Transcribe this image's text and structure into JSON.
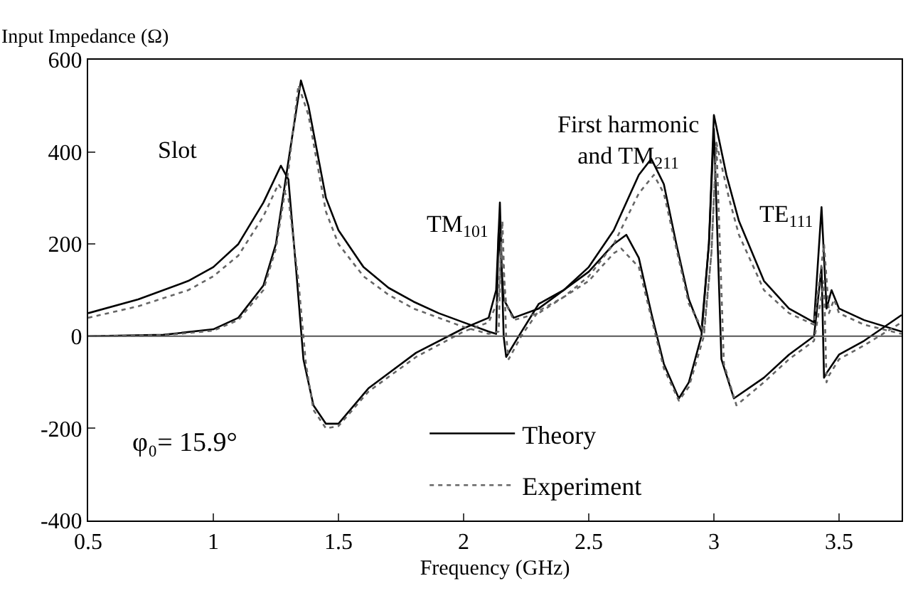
{
  "chart_data": {
    "type": "line",
    "xlabel": "Frequency (GHz)",
    "ylabel": "Input Impedance (Ω)",
    "xlim": [
      0.5,
      3.75
    ],
    "xticks": [
      0.5,
      1,
      1.5,
      2,
      2.5,
      3,
      3.5
    ],
    "ylim": [
      -400,
      600
    ],
    "yticks": [
      -400,
      -200,
      0,
      200,
      400,
      600
    ],
    "legend": "bottom",
    "marker": "none",
    "ref_lines": [
      {
        "axis": "y",
        "value": 0,
        "color": "#555555"
      }
    ],
    "annotations": [
      "Slot",
      "TM$_{101}$",
      "First harmonic\nand TM$_{211}$",
      "TE$_{111}$",
      "φ₀= 15.9°"
    ],
    "series": [
      {
        "name": "Theory",
        "color": "#000000",
        "line_style": "solid",
        "x": [
          0.5,
          0.7,
          0.9,
          1.0,
          1.1,
          1.2,
          1.27,
          1.3,
          1.33,
          1.36,
          1.4,
          1.45,
          1.5,
          1.62,
          1.81,
          2.0,
          2.1,
          2.13,
          2.145,
          2.16,
          2.17,
          2.22,
          2.3,
          2.4,
          2.5,
          2.6,
          2.65,
          2.7,
          2.75,
          2.8,
          2.86,
          2.9,
          2.95,
          2.98,
          3.0,
          3.03,
          3.08,
          3.2,
          3.3,
          3.4,
          3.43,
          3.44,
          3.45,
          3.5,
          3.6,
          3.75
        ],
        "values": [
          50,
          80,
          120,
          150,
          200,
          290,
          370,
          340,
          150,
          -50,
          -150,
          -190,
          -190,
          -113,
          -36,
          17,
          40,
          100,
          290,
          0,
          -45,
          0,
          70,
          100,
          140,
          200,
          220,
          170,
          50,
          -60,
          -135,
          -100,
          0,
          200,
          450,
          -50,
          -135,
          -90,
          -40,
          0,
          150,
          -90,
          -80,
          -40,
          -10,
          46
        ]
      },
      {
        "color": "#000000",
        "line_style": "solid",
        "x": [
          0.5,
          0.8,
          1.0,
          1.1,
          1.2,
          1.25,
          1.3,
          1.35,
          1.38,
          1.45,
          1.5,
          1.6,
          1.7,
          1.8,
          1.9,
          2.0,
          2.1,
          2.13,
          2.14,
          2.16,
          2.2,
          2.3,
          2.4,
          2.5,
          2.6,
          2.7,
          2.75,
          2.8,
          2.85,
          2.9,
          2.95,
          2.98,
          3.0,
          3.05,
          3.1,
          3.2,
          3.3,
          3.4,
          3.43,
          3.45,
          3.47,
          3.5,
          3.6,
          3.75
        ],
        "values": [
          0,
          3,
          15,
          40,
          110,
          200,
          380,
          555,
          500,
          300,
          230,
          150,
          105,
          75,
          50,
          30,
          10,
          5,
          230,
          80,
          40,
          60,
          100,
          150,
          230,
          350,
          385,
          330,
          200,
          80,
          10,
          200,
          480,
          350,
          250,
          120,
          60,
          30,
          280,
          60,
          100,
          60,
          35,
          10
        ]
      },
      {
        "name": "Experiment",
        "color": "#666666",
        "line_style": "dotted",
        "x": [
          0.5,
          0.7,
          0.9,
          1.0,
          1.1,
          1.2,
          1.26,
          1.3,
          1.34,
          1.37,
          1.4,
          1.45,
          1.5,
          1.62,
          1.81,
          2.0,
          2.1,
          2.14,
          2.155,
          2.17,
          2.18,
          2.23,
          2.3,
          2.4,
          2.5,
          2.6,
          2.63,
          2.7,
          2.75,
          2.8,
          2.86,
          2.9,
          2.96,
          2.99,
          3.01,
          3.04,
          3.09,
          3.2,
          3.3,
          3.4,
          3.44,
          3.45,
          3.46,
          3.5,
          3.6,
          3.75
        ],
        "values": [
          40,
          65,
          100,
          130,
          175,
          260,
          330,
          300,
          120,
          -60,
          -160,
          -200,
          -195,
          -120,
          -45,
          10,
          30,
          80,
          250,
          0,
          -50,
          0,
          55,
          85,
          120,
          180,
          190,
          150,
          40,
          -70,
          -140,
          -110,
          0,
          180,
          420,
          -60,
          -150,
          -100,
          -50,
          -10,
          120,
          -100,
          -85,
          -50,
          -20,
          30
        ]
      },
      {
        "color": "#666666",
        "line_style": "dotted",
        "x": [
          0.5,
          0.8,
          1.0,
          1.1,
          1.2,
          1.25,
          1.3,
          1.34,
          1.38,
          1.45,
          1.5,
          1.6,
          1.7,
          1.8,
          1.9,
          2.0,
          2.1,
          2.14,
          2.15,
          2.17,
          2.2,
          2.3,
          2.4,
          2.5,
          2.6,
          2.7,
          2.76,
          2.8,
          2.85,
          2.9,
          2.96,
          2.99,
          3.01,
          3.06,
          3.1,
          3.2,
          3.3,
          3.4,
          3.44,
          3.46,
          3.48,
          3.5,
          3.6,
          3.75
        ],
        "values": [
          0,
          2,
          12,
          35,
          100,
          190,
          360,
          545,
          480,
          270,
          200,
          130,
          90,
          60,
          40,
          20,
          5,
          10,
          200,
          70,
          35,
          50,
          85,
          130,
          200,
          310,
          350,
          310,
          190,
          70,
          10,
          180,
          420,
          300,
          220,
          100,
          50,
          25,
          200,
          50,
          80,
          50,
          25,
          5
        ]
      }
    ]
  }
}
